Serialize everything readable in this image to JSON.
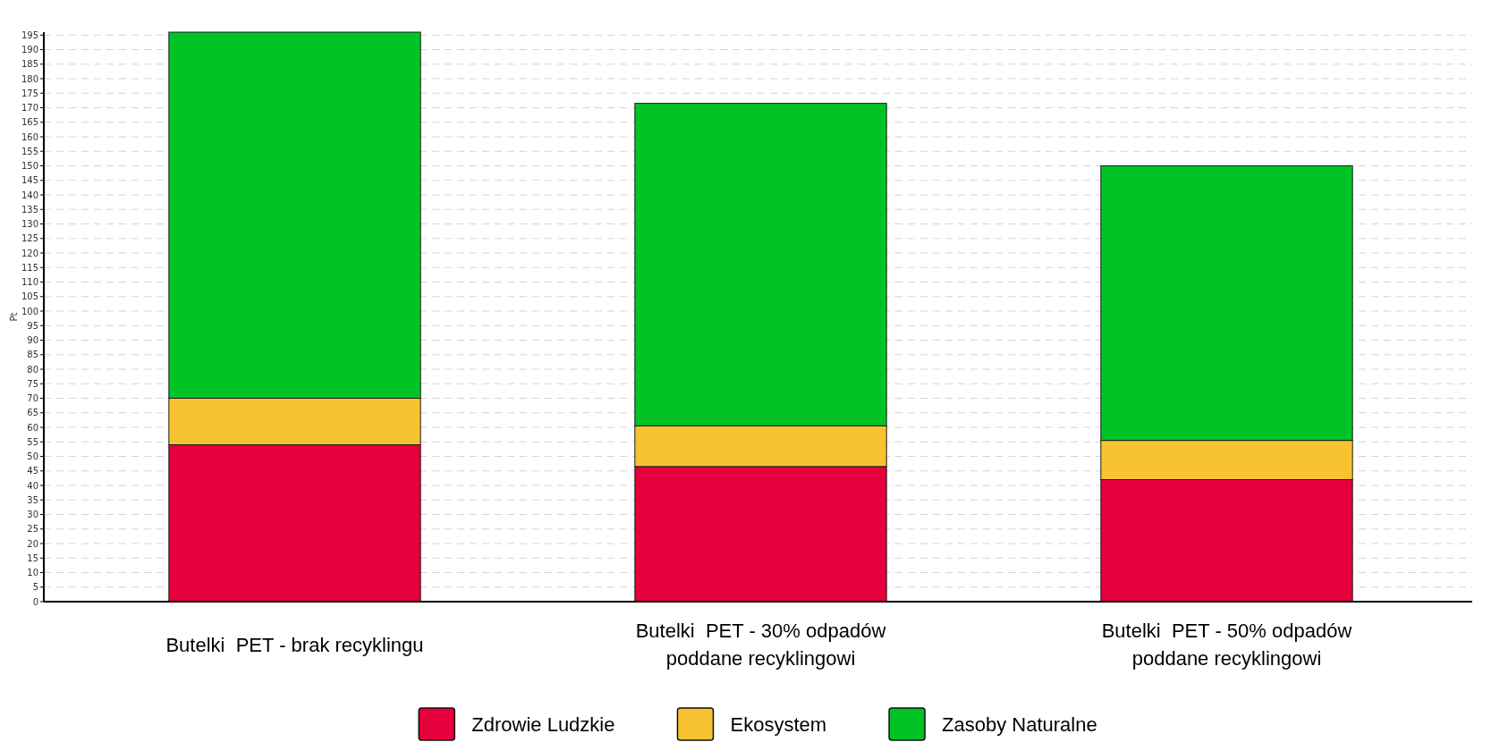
{
  "chart_data": {
    "type": "bar",
    "stacked": true,
    "categories": [
      "Butelki  PET - brak recyklingu",
      "Butelki  PET - 30% odpadów poddane recyklingowi",
      "Butelki  PET - 50% odpadów poddane recyklingowi"
    ],
    "series": [
      {
        "name": "Zdrowie Ludzkie",
        "color": "#e6003c",
        "values": [
          54,
          46.5,
          42
        ]
      },
      {
        "name": "Ekosystem",
        "color": "#f7c332",
        "values": [
          16,
          14,
          13.5
        ]
      },
      {
        "name": "Zasoby Naturalne",
        "color": "#00c425",
        "values": [
          126,
          111,
          94.5
        ]
      }
    ],
    "ylabel": "Pt",
    "ylim": [
      0,
      196
    ],
    "yticks": [
      0,
      5,
      10,
      15,
      20,
      25,
      30,
      35,
      40,
      45,
      50,
      55,
      60,
      65,
      70,
      75,
      80,
      85,
      90,
      95,
      100,
      105,
      110,
      115,
      120,
      125,
      130,
      135,
      140,
      145,
      150,
      155,
      160,
      165,
      170,
      175,
      180,
      185,
      190,
      195
    ],
    "grid": "y",
    "legend": "bottom"
  }
}
